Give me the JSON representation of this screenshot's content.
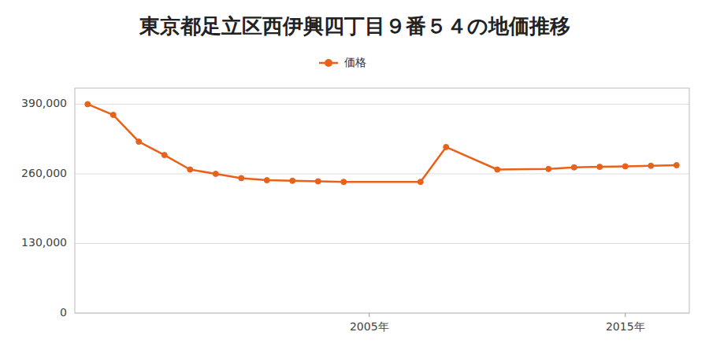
{
  "chart_data": {
    "type": "line",
    "title": "東京都足立区西伊興四丁目９番５４の地価推移",
    "x": [
      1994,
      1995,
      1996,
      1997,
      1998,
      1999,
      2000,
      2001,
      2002,
      2003,
      2004,
      2007,
      2008,
      2010,
      2012,
      2013,
      2014,
      2015,
      2016,
      2017
    ],
    "series": [
      {
        "name": "価格",
        "color": "#e8621a",
        "marker": "circle",
        "values": [
          390000,
          370000,
          320000,
          295000,
          268000,
          260000,
          252000,
          248000,
          247000,
          246000,
          245000,
          245000,
          310000,
          268000,
          269000,
          272000,
          273000,
          274000,
          275000,
          276000
        ]
      }
    ],
    "xlim": [
      1993.5,
      2017.5
    ],
    "xticks": [
      {
        "value": 2005,
        "label": "2005年"
      },
      {
        "value": 2015,
        "label": "2015年"
      }
    ],
    "ylim": [
      0,
      420000
    ],
    "yticks": [
      0,
      {
        "value": 130000,
        "label": "130,000"
      },
      {
        "value": 260000,
        "label": "260,000"
      },
      {
        "value": 390000,
        "label": "390,000"
      }
    ],
    "grid": true,
    "legend": "top"
  }
}
